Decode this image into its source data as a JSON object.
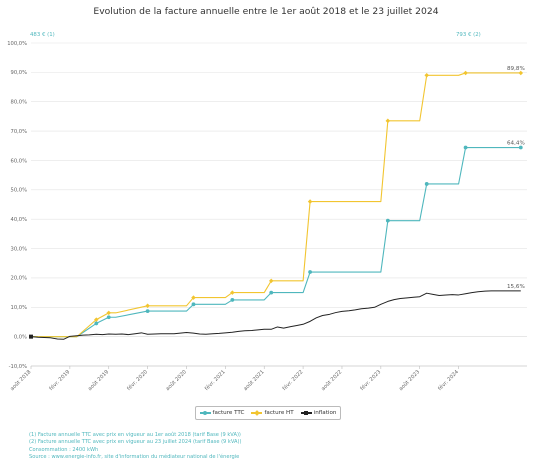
{
  "chart_data": {
    "type": "line",
    "title": "Evolution de la facture annuelle entre le 1er août 2018 et le 23 juillet 2024",
    "y_ticks": [
      "100,0%",
      "90,0%",
      "80,0%",
      "70,0%",
      "60,0%",
      "50,0%",
      "40,0%",
      "30,0%",
      "20,0%",
      "10,0%",
      "0,0%",
      "-10,0%"
    ],
    "ylim": [
      -10,
      100
    ],
    "x_tick_labels": [
      "août 2018",
      "févr. 2019",
      "août 2019",
      "févr. 2020",
      "août 2020",
      "févr. 2021",
      "août 2021",
      "févr. 2022",
      "août 2022",
      "févr. 2023",
      "août 2023",
      "févr. 2024"
    ],
    "x_range": [
      2018.58,
      2024.96
    ],
    "grid": true,
    "legend_position": "bottom",
    "annotations": {
      "left": "483 € (1)",
      "right": "793 € (2)"
    },
    "end_labels": {
      "ht": "89,8%",
      "ttc": "64,4%",
      "inflation": "15,6%"
    },
    "series": [
      {
        "name": "facture TTC",
        "color": "#4fb7bd",
        "step": true,
        "points": [
          [
            2018.58,
            0
          ],
          [
            2019.08,
            0
          ],
          [
            2019.17,
            0
          ],
          [
            2019.42,
            4.5
          ],
          [
            2019.58,
            6.6
          ],
          [
            2019.67,
            6.6
          ],
          [
            2020.08,
            8.7
          ],
          [
            2020.58,
            8.7
          ],
          [
            2020.67,
            11
          ],
          [
            2021.08,
            11
          ],
          [
            2021.17,
            12.5
          ],
          [
            2021.58,
            12.5
          ],
          [
            2021.67,
            15
          ],
          [
            2022.08,
            15
          ],
          [
            2022.17,
            22
          ],
          [
            2023.08,
            22
          ],
          [
            2023.17,
            39.5
          ],
          [
            2023.58,
            39.5
          ],
          [
            2023.67,
            52
          ],
          [
            2024.08,
            52
          ],
          [
            2024.17,
            64.4
          ],
          [
            2024.88,
            64.4
          ]
        ]
      },
      {
        "name": "facture HT",
        "color": "#f2c530",
        "step": true,
        "points": [
          [
            2018.58,
            0
          ],
          [
            2019.08,
            0
          ],
          [
            2019.17,
            0
          ],
          [
            2019.42,
            5.8
          ],
          [
            2019.58,
            8.1
          ],
          [
            2019.67,
            8.1
          ],
          [
            2020.08,
            10.5
          ],
          [
            2020.58,
            10.5
          ],
          [
            2020.67,
            13.3
          ],
          [
            2021.08,
            13.3
          ],
          [
            2021.17,
            15
          ],
          [
            2021.58,
            15
          ],
          [
            2021.67,
            19
          ],
          [
            2022.08,
            19
          ],
          [
            2022.17,
            46
          ],
          [
            2023.08,
            46
          ],
          [
            2023.17,
            73.5
          ],
          [
            2023.58,
            73.5
          ],
          [
            2023.67,
            89
          ],
          [
            2024.08,
            89
          ],
          [
            2024.17,
            89.8
          ],
          [
            2024.88,
            89.8
          ]
        ]
      },
      {
        "name": "inflation",
        "color": "#222222",
        "step": false,
        "points": [
          [
            2018.58,
            0
          ],
          [
            2018.67,
            -0.2
          ],
          [
            2018.75,
            -0.3
          ],
          [
            2018.83,
            -0.4
          ],
          [
            2018.92,
            -0.8
          ],
          [
            2019.0,
            -0.9
          ],
          [
            2019.08,
            0.1
          ],
          [
            2019.17,
            0.3
          ],
          [
            2019.25,
            0.5
          ],
          [
            2019.33,
            0.6
          ],
          [
            2019.42,
            0.8
          ],
          [
            2019.5,
            0.7
          ],
          [
            2019.58,
            0.9
          ],
          [
            2019.67,
            0.8
          ],
          [
            2019.75,
            0.9
          ],
          [
            2019.83,
            0.7
          ],
          [
            2019.92,
            1.0
          ],
          [
            2020.0,
            1.3
          ],
          [
            2020.08,
            0.8
          ],
          [
            2020.17,
            0.9
          ],
          [
            2020.25,
            1.0
          ],
          [
            2020.33,
            1.0
          ],
          [
            2020.42,
            1.0
          ],
          [
            2020.5,
            1.2
          ],
          [
            2020.58,
            1.4
          ],
          [
            2020.67,
            1.2
          ],
          [
            2020.75,
            0.9
          ],
          [
            2020.83,
            0.8
          ],
          [
            2020.92,
            1.0
          ],
          [
            2021.0,
            1.1
          ],
          [
            2021.08,
            1.3
          ],
          [
            2021.17,
            1.5
          ],
          [
            2021.25,
            1.8
          ],
          [
            2021.33,
            2.0
          ],
          [
            2021.42,
            2.1
          ],
          [
            2021.5,
            2.3
          ],
          [
            2021.58,
            2.5
          ],
          [
            2021.67,
            2.5
          ],
          [
            2021.75,
            3.3
          ],
          [
            2021.83,
            2.9
          ],
          [
            2021.92,
            3.4
          ],
          [
            2022.0,
            3.8
          ],
          [
            2022.08,
            4.2
          ],
          [
            2022.17,
            5.2
          ],
          [
            2022.25,
            6.4
          ],
          [
            2022.33,
            7.2
          ],
          [
            2022.42,
            7.6
          ],
          [
            2022.5,
            8.2
          ],
          [
            2022.58,
            8.6
          ],
          [
            2022.67,
            8.8
          ],
          [
            2022.75,
            9.1
          ],
          [
            2022.83,
            9.5
          ],
          [
            2022.92,
            9.7
          ],
          [
            2023.0,
            10.0
          ],
          [
            2023.08,
            11.0
          ],
          [
            2023.17,
            12.0
          ],
          [
            2023.25,
            12.6
          ],
          [
            2023.33,
            13.0
          ],
          [
            2023.42,
            13.2
          ],
          [
            2023.5,
            13.4
          ],
          [
            2023.58,
            13.6
          ],
          [
            2023.67,
            14.8
          ],
          [
            2023.75,
            14.4
          ],
          [
            2023.83,
            14.0
          ],
          [
            2023.92,
            14.2
          ],
          [
            2024.0,
            14.3
          ],
          [
            2024.08,
            14.2
          ],
          [
            2024.17,
            14.6
          ],
          [
            2024.25,
            15.0
          ],
          [
            2024.33,
            15.3
          ],
          [
            2024.42,
            15.5
          ],
          [
            2024.5,
            15.6
          ],
          [
            2024.58,
            15.6
          ],
          [
            2024.88,
            15.6
          ]
        ]
      }
    ]
  },
  "legend": {
    "items": [
      {
        "label": "facture TTC",
        "color": "#4fb7bd",
        "marker": "circle"
      },
      {
        "label": "facture HT",
        "color": "#f2c530",
        "marker": "diamond"
      },
      {
        "label": "inflation",
        "color": "#222222",
        "marker": "square"
      }
    ]
  },
  "notes": {
    "line1": "(1) Facture annuelle TTC avec prix en vigueur au 1er août 2018 (tarif Base (9 kVA))",
    "line2": "(2) Facture annuelle TTC avec prix en vigueur au 23 juillet 2024 (tarif Base (9 kVA))",
    "line3": "Consommation : 2400 kWh",
    "line4": "Source : www.energie-info.fr, site d'information du médiateur national de l'énergie"
  }
}
